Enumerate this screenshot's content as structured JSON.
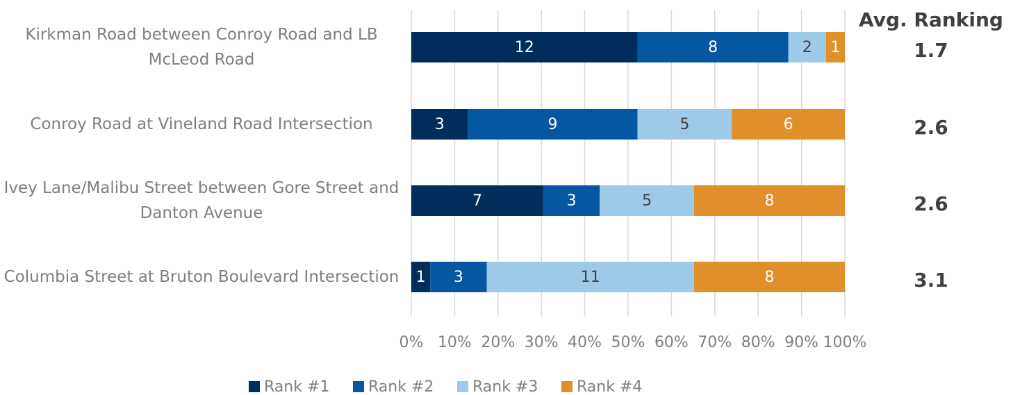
{
  "chart_data": {
    "type": "bar",
    "orientation": "horizontal",
    "stacking": "percent",
    "categories": [
      "Kirkman Road between Conroy Road and LB McLeod Road",
      "Conroy Road at Vineland Road Intersection",
      "Ivey Lane/Malibu Street between Gore Street and Danton Avenue",
      "Columbia Street at Bruton Boulevard Intersection"
    ],
    "series": [
      {
        "name": "Rank #1",
        "color": "#002d5b",
        "label_color": "#ffffff",
        "values": [
          12,
          3,
          7,
          1
        ]
      },
      {
        "name": "Rank #2",
        "color": "#0457a0",
        "label_color": "#ffffff",
        "values": [
          8,
          9,
          3,
          3
        ]
      },
      {
        "name": "Rank #3",
        "color": "#9ecae9",
        "label_color": "#404040",
        "values": [
          2,
          5,
          5,
          11
        ]
      },
      {
        "name": "Rank #4",
        "color": "#e08f2b",
        "label_color": "#ffffff",
        "values": [
          1,
          6,
          8,
          8
        ]
      }
    ],
    "xlim": [
      0,
      100
    ],
    "xticks": [
      {
        "value": 0,
        "label": "0%"
      },
      {
        "value": 10,
        "label": "10%"
      },
      {
        "value": 20,
        "label": "20%"
      },
      {
        "value": 30,
        "label": "30%"
      },
      {
        "value": 40,
        "label": "40%"
      },
      {
        "value": 50,
        "label": "50%"
      },
      {
        "value": 60,
        "label": "60%"
      },
      {
        "value": 70,
        "label": "70%"
      },
      {
        "value": 80,
        "label": "80%"
      },
      {
        "value": 90,
        "label": "90%"
      },
      {
        "value": 100,
        "label": "100%"
      }
    ],
    "grid": true,
    "legend": "bottom",
    "avg_ranking": {
      "title": "Avg. Ranking",
      "values": [
        1.7,
        2.6,
        2.6,
        3.1
      ]
    }
  }
}
